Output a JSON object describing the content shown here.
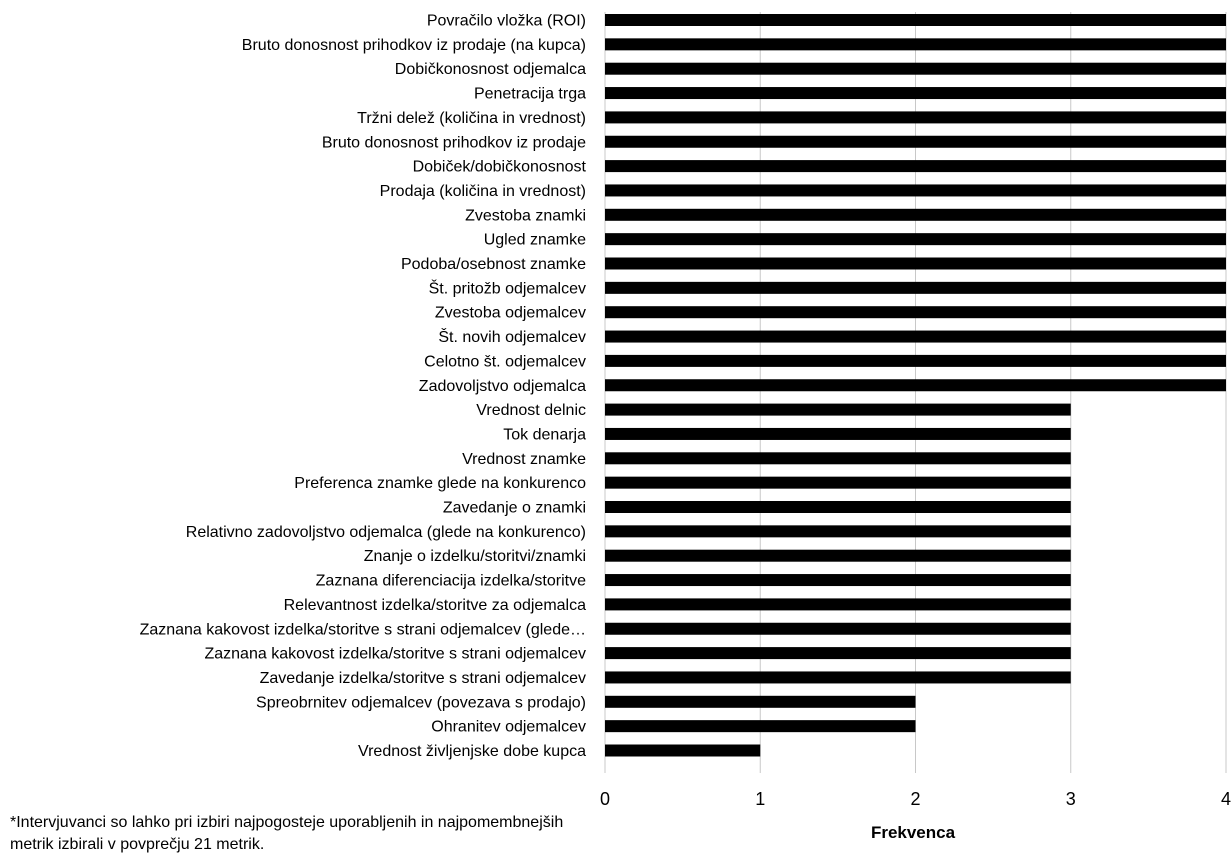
{
  "chart_data": {
    "type": "bar",
    "orientation": "horizontal",
    "xlabel": "Frekvenca",
    "ylabel": "",
    "xlim": [
      0,
      4
    ],
    "xticks": [
      "0",
      "1",
      "2",
      "3",
      "4"
    ],
    "grid": true,
    "legend": "none",
    "bar_color": "#000000",
    "grid_color": "#c8c8c8",
    "categories": [
      "Povračilo vložka (ROI)",
      "Bruto donosnost prihodkov iz prodaje (na kupca)",
      "Dobičkonosnost odjemalca",
      "Penetracija trga",
      "Tržni delež (količina in vrednost)",
      "Bruto donosnost prihodkov iz prodaje",
      "Dobiček/dobičkonosnost",
      "Prodaja (količina in vrednost)",
      "Zvestoba znamki",
      "Ugled znamke",
      "Podoba/osebnost znamke",
      "Št. pritožb odjemalcev",
      "Zvestoba odjemalcev",
      "Št. novih odjemalcev",
      "Celotno št. odjemalcev",
      "Zadovoljstvo odjemalca",
      "Vrednost delnic",
      "Tok denarja",
      "Vrednost znamke",
      "Preferenca znamke glede na konkurenco",
      "Zavedanje o znamki",
      "Relativno zadovoljstvo odjemalca (glede na konkurenco)",
      "Znanje o izdelku/storitvi/znamki",
      "Zaznana diferenciacija izdelka/storitve",
      "Relevantnost izdelka/storitve za odjemalca",
      "Zaznana kakovost izdelka/storitve s strani odjemalcev (glede…",
      "Zaznana kakovost izdelka/storitve s strani odjemalcev",
      "Zavedanje izdelka/storitve s strani odjemalcev",
      "Spreobrnitev odjemalcev (povezava s prodajo)",
      "Ohranitev odjemalcev",
      "Vrednost življenjske dobe kupca"
    ],
    "values": [
      4,
      4,
      4,
      4,
      4,
      4,
      4,
      4,
      4,
      4,
      4,
      4,
      4,
      4,
      4,
      4,
      3,
      3,
      3,
      3,
      3,
      3,
      3,
      3,
      3,
      3,
      3,
      3,
      2,
      2,
      1
    ]
  },
  "footnote": "*Intervjuvanci so lahko pri izbiri najpogosteje uporabljenih in najpomembnejših metrik izbirali v povprečju 21 metrik."
}
